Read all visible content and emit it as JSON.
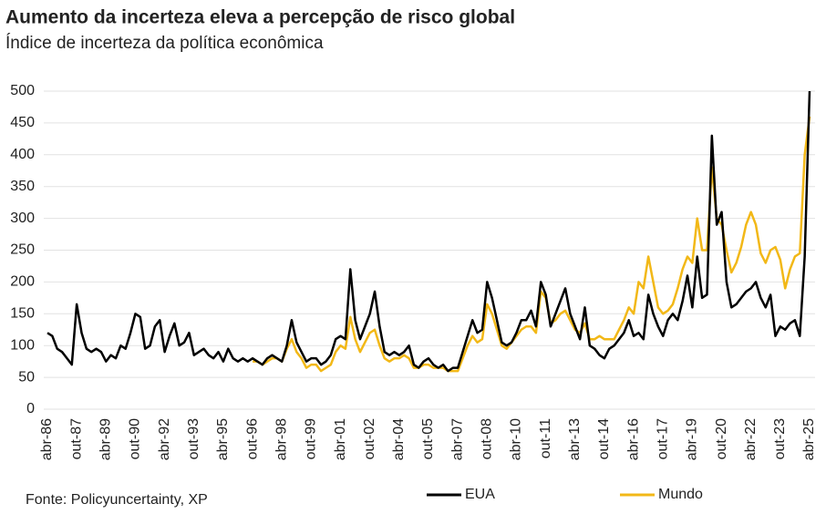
{
  "chart_data": {
    "type": "line",
    "title": "Aumento da incerteza eleva a percepção de risco global",
    "subtitle": "Índice de incerteza da política econômica",
    "source": "Fonte:  Policyuncertainty, XP",
    "categories": [
      "abr-86",
      null,
      null,
      null,
      null,
      null,
      "out-87",
      null,
      null,
      null,
      null,
      null,
      "abr-89",
      null,
      null,
      null,
      null,
      null,
      "out-90",
      null,
      null,
      null,
      null,
      null,
      "abr-92",
      null,
      null,
      null,
      null,
      null,
      "out-93",
      null,
      null,
      null,
      null,
      null,
      "abr-95",
      null,
      null,
      null,
      null,
      null,
      "out-96",
      null,
      null,
      null,
      null,
      null,
      "abr-98",
      null,
      null,
      null,
      null,
      null,
      "out-99",
      null,
      null,
      null,
      null,
      null,
      "abr-01",
      null,
      null,
      null,
      null,
      null,
      "out-02",
      null,
      null,
      null,
      null,
      null,
      "abr-04",
      null,
      null,
      null,
      null,
      null,
      "out-05",
      null,
      null,
      null,
      null,
      null,
      "abr-07",
      null,
      null,
      null,
      null,
      null,
      "out-08",
      null,
      null,
      null,
      null,
      null,
      "abr-10",
      null,
      null,
      null,
      null,
      null,
      "out-11",
      null,
      null,
      null,
      null,
      null,
      "abr-13",
      null,
      null,
      null,
      null,
      null,
      "out-14",
      null,
      null,
      null,
      null,
      null,
      "abr-16",
      null,
      null,
      null,
      null,
      null,
      "out-17",
      null,
      null,
      null,
      null,
      null,
      "abr-19",
      null,
      null,
      null,
      null,
      null,
      "out-20",
      null,
      null,
      null,
      null,
      null,
      "abr-22",
      null,
      null,
      null,
      null,
      null,
      "out-23",
      null,
      null,
      null,
      null,
      null,
      "abr-25"
    ],
    "series": [
      {
        "name": "EUA",
        "color": "#000000",
        "values": [
          120,
          115,
          95,
          90,
          80,
          70,
          165,
          120,
          95,
          90,
          95,
          90,
          75,
          85,
          80,
          100,
          95,
          120,
          150,
          145,
          95,
          100,
          130,
          140,
          90,
          115,
          135,
          100,
          105,
          120,
          85,
          90,
          95,
          85,
          80,
          90,
          75,
          95,
          80,
          75,
          80,
          75,
          80,
          75,
          70,
          80,
          85,
          80,
          75,
          100,
          140,
          105,
          90,
          75,
          80,
          80,
          70,
          75,
          85,
          110,
          115,
          110,
          220,
          140,
          110,
          130,
          150,
          185,
          130,
          90,
          85,
          90,
          85,
          90,
          100,
          70,
          65,
          75,
          80,
          70,
          65,
          70,
          60,
          65,
          65,
          90,
          115,
          140,
          120,
          125,
          200,
          175,
          140,
          105,
          100,
          105,
          120,
          140,
          140,
          155,
          130,
          200,
          180,
          130,
          150,
          170,
          190,
          150,
          130,
          110,
          160,
          100,
          95,
          85,
          80,
          95,
          100,
          110,
          120,
          140,
          115,
          120,
          110,
          180,
          150,
          130,
          115,
          140,
          150,
          140,
          170,
          210,
          160,
          240,
          175,
          180,
          430,
          290,
          310,
          200,
          160,
          165,
          175,
          185,
          190,
          200,
          175,
          160,
          180,
          115,
          130,
          125,
          135,
          140,
          115,
          240,
          500
        ]
      },
      {
        "name": "Mundo",
        "color": "#f2b817",
        "values": [
          null,
          null,
          null,
          null,
          null,
          null,
          null,
          null,
          null,
          null,
          null,
          null,
          null,
          null,
          null,
          null,
          null,
          null,
          null,
          null,
          null,
          null,
          null,
          null,
          null,
          null,
          null,
          null,
          null,
          null,
          null,
          null,
          null,
          null,
          null,
          null,
          null,
          null,
          null,
          null,
          null,
          null,
          75,
          75,
          70,
          75,
          80,
          80,
          75,
          95,
          110,
          90,
          80,
          65,
          70,
          70,
          60,
          65,
          70,
          90,
          100,
          95,
          145,
          110,
          90,
          105,
          120,
          125,
          100,
          80,
          75,
          80,
          80,
          85,
          80,
          65,
          65,
          70,
          70,
          65,
          65,
          65,
          60,
          60,
          60,
          80,
          100,
          115,
          105,
          110,
          165,
          150,
          125,
          100,
          95,
          105,
          115,
          125,
          130,
          130,
          120,
          185,
          175,
          135,
          140,
          150,
          155,
          140,
          125,
          120,
          135,
          110,
          110,
          115,
          110,
          110,
          110,
          125,
          140,
          160,
          150,
          200,
          190,
          240,
          200,
          160,
          150,
          155,
          165,
          190,
          220,
          240,
          230,
          300,
          250,
          250,
          380,
          300,
          290,
          250,
          215,
          230,
          255,
          290,
          310,
          290,
          245,
          230,
          250,
          255,
          235,
          190,
          220,
          240,
          245,
          400,
          460
        ]
      }
    ],
    "ylim": [
      0,
      500
    ],
    "yticks": [
      0,
      50,
      100,
      150,
      200,
      250,
      300,
      350,
      400,
      450,
      500
    ],
    "grid": true
  }
}
